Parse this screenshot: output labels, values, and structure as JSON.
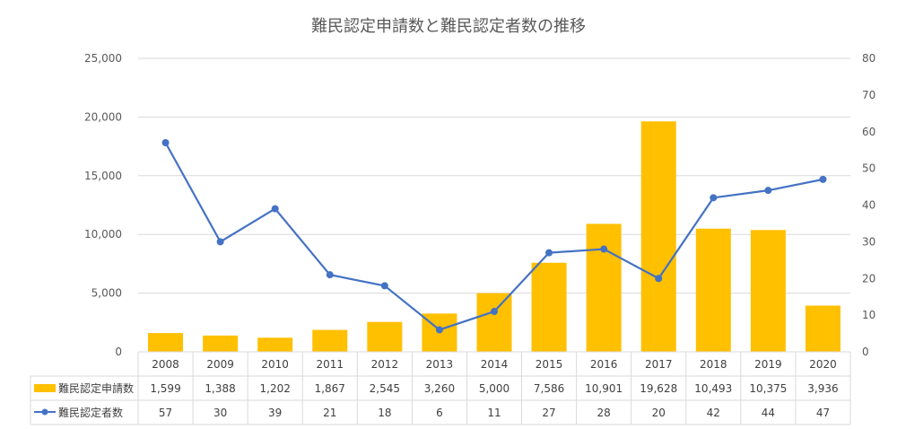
{
  "chart_data": {
    "type": "bar",
    "title": "難民認定申請数と難民認定者数の推移",
    "categories": [
      "2008",
      "2009",
      "2010",
      "2011",
      "2012",
      "2013",
      "2014",
      "2015",
      "2016",
      "2017",
      "2018",
      "2019",
      "2020"
    ],
    "series": [
      {
        "name": "難民認定申請数",
        "type": "bar",
        "axis": "left",
        "color": "#FFC000",
        "values": [
          1599,
          1388,
          1202,
          1867,
          2545,
          3260,
          5000,
          7586,
          10901,
          19628,
          10493,
          10375,
          3936
        ],
        "display": [
          "1,599",
          "1,388",
          "1,202",
          "1,867",
          "2,545",
          "3,260",
          "5,000",
          "7,586",
          "10,901",
          "19,628",
          "10,493",
          "10,375",
          "3,936"
        ]
      },
      {
        "name": "難民認定者数",
        "type": "line",
        "axis": "right",
        "color": "#4472C4",
        "values": [
          57,
          30,
          39,
          21,
          18,
          6,
          11,
          27,
          28,
          20,
          42,
          44,
          47
        ],
        "display": [
          "57",
          "30",
          "39",
          "21",
          "18",
          "6",
          "11",
          "27",
          "28",
          "20",
          "42",
          "44",
          "47"
        ]
      }
    ],
    "y_left": {
      "ylim": [
        0,
        25000
      ],
      "ticks": [
        "0",
        "5,000",
        "10,000",
        "15,000",
        "20,000",
        "25,000"
      ],
      "tick_values": [
        0,
        5000,
        10000,
        15000,
        20000,
        25000
      ]
    },
    "y_right": {
      "ylim": [
        0,
        80
      ],
      "ticks": [
        "0",
        "10",
        "20",
        "30",
        "40",
        "50",
        "60",
        "70",
        "80"
      ],
      "tick_values": [
        0,
        10,
        20,
        30,
        40,
        50,
        60,
        70,
        80
      ]
    },
    "grid": true,
    "legend": "data-table",
    "gridline_color": "#D9D9D9"
  }
}
